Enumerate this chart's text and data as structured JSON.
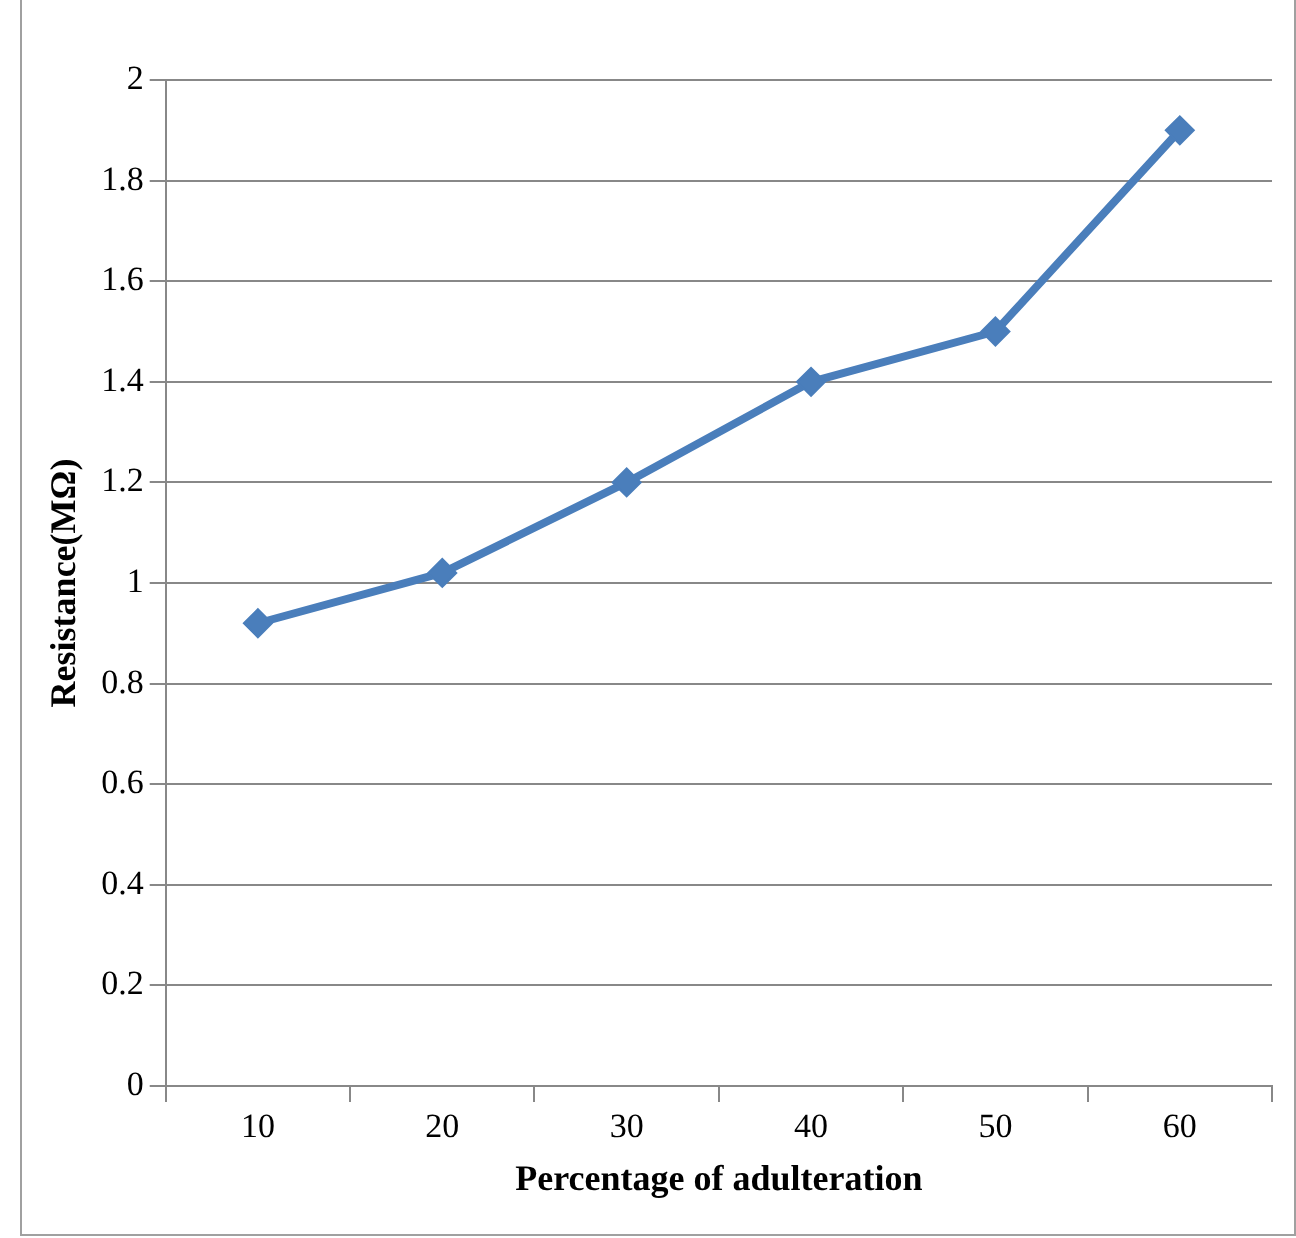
{
  "chart_data": {
    "type": "line",
    "xlabel": "Percentage of adulteration",
    "ylabel": "Resistance(MΩ)",
    "categories": [
      "10",
      "20",
      "30",
      "40",
      "50",
      "60"
    ],
    "series": [
      {
        "color": "#4a7ebb",
        "values": [
          0.92,
          1.02,
          1.2,
          1.4,
          1.5,
          1.9
        ]
      }
    ],
    "ylim": [
      0,
      2
    ],
    "yticks": [
      0,
      0.2,
      0.4,
      0.6,
      0.8,
      1,
      1.2,
      1.4,
      1.6,
      1.8,
      2
    ],
    "grid": "y",
    "legend": false,
    "marker": "diamond",
    "line_style": "solid"
  }
}
